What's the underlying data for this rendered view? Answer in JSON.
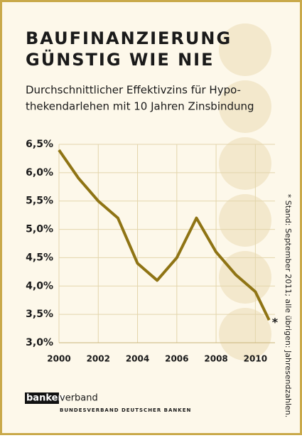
{
  "chart_data": {
    "type": "line",
    "title": [
      "BAUFINANZIERUNG",
      "GÜNSTIG WIE NIE"
    ],
    "subtitle": [
      "Durchschnittlicher Effektivzins für Hypo-",
      "thekendarlehen mit 10 Jahren Zinsbindung"
    ],
    "x": [
      2000,
      2001,
      2002,
      2003,
      2004,
      2005,
      2006,
      2007,
      2008,
      2009,
      2010,
      2010.7
    ],
    "series": [
      {
        "color": "#8f7414",
        "values": [
          6.4,
          5.9,
          5.5,
          5.2,
          4.4,
          4.1,
          4.5,
          5.2,
          4.6,
          4.2,
          3.9,
          3.4
        ]
      }
    ],
    "xlim": [
      2000,
      2011
    ],
    "xticks": [
      2000,
      2002,
      2004,
      2006,
      2008,
      2010
    ],
    "ylim": [
      3.0,
      6.5
    ],
    "yticks": [
      {
        "value": 3.0,
        "label": "3,0%"
      },
      {
        "value": 3.5,
        "label": "3,5%"
      },
      {
        "value": 4.0,
        "label": "4,0%"
      },
      {
        "value": 4.5,
        "label": "4,5%"
      },
      {
        "value": 5.0,
        "label": "5,0%"
      },
      {
        "value": 5.5,
        "label": "5,5%"
      },
      {
        "value": 6.0,
        "label": "6,0%"
      },
      {
        "value": 6.5,
        "label": "6,5%"
      }
    ],
    "grid": true,
    "annotation": "*",
    "footnote": "* Stand: September 2011; alle übrigen: Jahresendzahlen."
  },
  "source": {
    "logo_bold": "banken",
    "logo_rest": "verband",
    "tagline": "BUNDESVERBAND DEUTSCHER BANKEN"
  }
}
